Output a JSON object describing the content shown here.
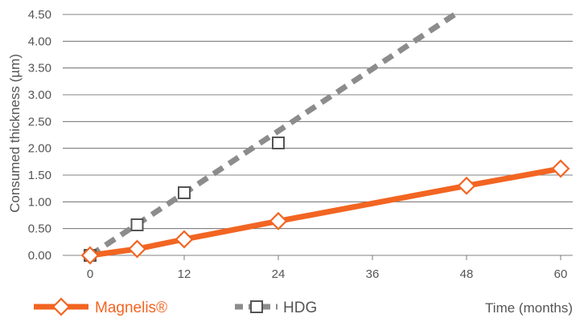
{
  "chart_data": {
    "type": "line",
    "title": "",
    "xlabel": "Time (months)",
    "ylabel": "Consumed thickness (µm)",
    "xlim": [
      0,
      60
    ],
    "ylim": [
      0,
      4.5
    ],
    "xticks": [
      "0",
      "12",
      "24",
      "36",
      "48",
      "60"
    ],
    "yticks": [
      "0.00",
      "0.50",
      "1.00",
      "1.50",
      "2.00",
      "2.50",
      "3.00",
      "3.50",
      "4.00",
      "4.50"
    ],
    "grid": "horizontal",
    "legend_position": "bottom-left",
    "series": [
      {
        "name": "Magnelis®",
        "color": "#f26522",
        "marker": "diamond",
        "line": "solid",
        "x": [
          0,
          6,
          12,
          24,
          48,
          60
        ],
        "y": [
          0.0,
          0.12,
          0.3,
          0.64,
          1.3,
          1.62
        ]
      },
      {
        "name": "HDG",
        "color": "#8c8c8c",
        "marker": "square",
        "line": "dashed",
        "x": [
          0,
          6,
          12,
          24
        ],
        "y": [
          0.0,
          0.57,
          1.17,
          2.1
        ],
        "trendline": {
          "x": [
            0,
            46.5
          ],
          "y": [
            0,
            4.5
          ]
        }
      }
    ]
  }
}
